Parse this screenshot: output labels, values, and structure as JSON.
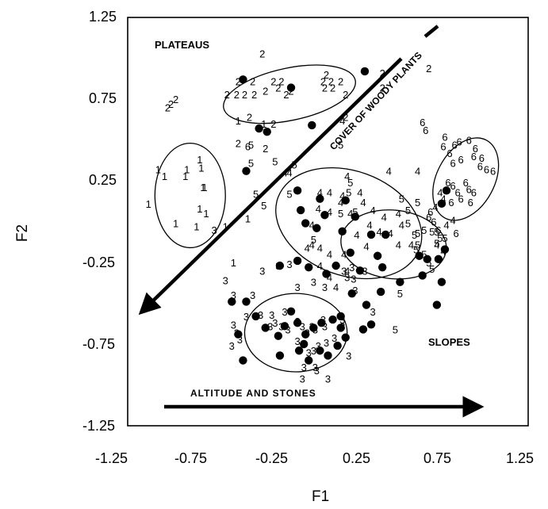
{
  "chart_data": {
    "type": "scatter",
    "title": "",
    "xlabel": "F1",
    "ylabel": "F2",
    "xlim": [
      -1.25,
      1.25
    ],
    "ylim": [
      -1.25,
      1.25
    ],
    "xticks": [
      "-1.25",
      "-0.75",
      "-0.25",
      "0.25",
      "0.75",
      "1.25"
    ],
    "yticks": [
      "1.25",
      "0.75",
      "0.25",
      "-0.25",
      "-0.75",
      "-1.25"
    ],
    "grid": false,
    "annotations": {
      "plateaus": "PLATEAUS",
      "slopes": "SLOPES",
      "woody_arrow": "COVER OF WOODY PLANTS",
      "altitude_arrow": "ALTITUDE AND STONES"
    },
    "series": [
      {
        "name": "1",
        "marker": "1",
        "points": [
          [
            -1.06,
            0.32
          ],
          [
            -1.02,
            0.28
          ],
          [
            -1.12,
            0.11
          ],
          [
            -0.88,
            0.32
          ],
          [
            -0.89,
            0.28
          ],
          [
            -0.78,
            0.21
          ],
          [
            -0.8,
            0.08
          ],
          [
            -0.76,
            0.05
          ],
          [
            -0.95,
            -0.01
          ],
          [
            -0.82,
            -0.03
          ],
          [
            -0.64,
            -0.03
          ],
          [
            -0.56,
            0.62
          ],
          [
            -0.4,
            0.6
          ],
          [
            -0.5,
            0.02
          ],
          [
            -0.59,
            -0.25
          ],
          [
            -0.77,
            0.21
          ],
          [
            -0.79,
            0.33
          ],
          [
            -0.8,
            0.38
          ]
        ]
      },
      {
        "name": "2",
        "marker": "2",
        "points": [
          [
            -0.41,
            1.03
          ],
          [
            -0.56,
            0.86
          ],
          [
            -0.47,
            0.86
          ],
          [
            -0.34,
            0.86
          ],
          [
            -0.29,
            0.86
          ],
          [
            -0.31,
            0.82
          ],
          [
            -0.39,
            0.8
          ],
          [
            -0.46,
            0.78
          ],
          [
            -0.52,
            0.78
          ],
          [
            -0.57,
            0.78
          ],
          [
            -0.63,
            0.78
          ],
          [
            -0.23,
            0.8
          ],
          [
            -0.26,
            0.78
          ],
          [
            -0.03,
            0.86
          ],
          [
            -0.02,
            0.82
          ],
          [
            0.03,
            0.82
          ],
          [
            0.02,
            0.86
          ],
          [
            0.08,
            0.86
          ],
          [
            -0.01,
            0.9
          ],
          [
            0.11,
            0.64
          ],
          [
            0.11,
            0.78
          ],
          [
            0.34,
            0.82
          ],
          [
            0.34,
            0.91
          ],
          [
            -0.49,
            0.64
          ],
          [
            -0.34,
            0.6
          ],
          [
            -0.39,
            0.45
          ],
          [
            -0.56,
            0.48
          ],
          [
            -1.0,
            0.7
          ],
          [
            -0.98,
            0.72
          ],
          [
            -0.95,
            0.75
          ],
          [
            0.63,
            0.94
          ]
        ]
      },
      {
        "name": "3",
        "marker": "3",
        "points": [
          [
            -0.71,
            -0.05
          ],
          [
            -0.64,
            -0.36
          ],
          [
            -0.59,
            -0.45
          ],
          [
            -0.47,
            -0.45
          ],
          [
            -0.41,
            -0.3
          ],
          [
            -0.31,
            -0.27
          ],
          [
            -0.24,
            -0.26
          ],
          [
            -0.51,
            -0.58
          ],
          [
            -0.59,
            -0.63
          ],
          [
            -0.57,
            -0.68
          ],
          [
            -0.55,
            -0.72
          ],
          [
            -0.6,
            -0.76
          ],
          [
            -0.42,
            -0.57
          ],
          [
            -0.35,
            -0.57
          ],
          [
            -0.33,
            -0.62
          ],
          [
            -0.29,
            -0.64
          ],
          [
            -0.25,
            -0.66
          ],
          [
            -0.19,
            -0.61
          ],
          [
            -0.16,
            -0.64
          ],
          [
            -0.13,
            -0.68
          ],
          [
            -0.1,
            -0.64
          ],
          [
            -0.08,
            -0.66
          ],
          [
            -0.02,
            -0.64
          ],
          [
            -0.19,
            -0.73
          ],
          [
            -0.12,
            -0.8
          ],
          [
            -0.09,
            -0.79
          ],
          [
            -0.06,
            -0.76
          ],
          [
            -0.01,
            -0.74
          ],
          [
            0.04,
            -0.71
          ],
          [
            0.09,
            -0.64
          ],
          [
            -0.15,
            -0.89
          ],
          [
            -0.08,
            -0.89
          ],
          [
            -0.07,
            -0.91
          ],
          [
            -0.16,
            -0.96
          ],
          [
            0.0,
            -0.96
          ],
          [
            0.13,
            -0.82
          ],
          [
            0.09,
            -0.6
          ],
          [
            0.28,
            -0.55
          ],
          [
            0.17,
            -0.42
          ],
          [
            0.16,
            -0.35
          ],
          [
            0.1,
            -0.3
          ],
          [
            -0.19,
            -0.4
          ],
          [
            -0.09,
            -0.37
          ],
          [
            -0.02,
            -0.4
          ],
          [
            0.15,
            -0.28
          ],
          [
            0.23,
            -0.3
          ],
          [
            0.12,
            -0.34
          ],
          [
            -0.27,
            -0.55
          ],
          [
            -0.36,
            -0.64
          ],
          [
            -0.03,
            -0.6
          ]
        ]
      },
      {
        "name": "4",
        "marker": "4",
        "points": [
          [
            0.09,
            0.62
          ],
          [
            -0.27,
            0.3
          ],
          [
            -0.24,
            0.3
          ],
          [
            0.12,
            0.28
          ],
          [
            0.38,
            0.31
          ],
          [
            0.56,
            0.31
          ],
          [
            -0.05,
            0.18
          ],
          [
            0.01,
            0.18
          ],
          [
            -0.06,
            0.08
          ],
          [
            0.01,
            0.06
          ],
          [
            0.09,
            0.16
          ],
          [
            -0.1,
            -0.02
          ],
          [
            0.08,
            0.12
          ],
          [
            0.22,
            0.12
          ],
          [
            0.28,
            0.07
          ],
          [
            0.35,
            0.03
          ],
          [
            0.26,
            -0.02
          ],
          [
            0.32,
            -0.06
          ],
          [
            0.39,
            -0.07
          ],
          [
            0.46,
            -0.02
          ],
          [
            0.18,
            -0.08
          ],
          [
            0.24,
            -0.15
          ],
          [
            -0.1,
            -0.14
          ],
          [
            -0.05,
            -0.16
          ],
          [
            -0.13,
            -0.16
          ],
          [
            0.1,
            -0.2
          ],
          [
            0.01,
            -0.2
          ],
          [
            0.12,
            -0.3
          ],
          [
            -0.05,
            -0.27
          ],
          [
            0.44,
            0.05
          ],
          [
            0.44,
            -0.14
          ],
          [
            0.52,
            -0.14
          ],
          [
            0.2,
            0.18
          ],
          [
            0.01,
            -0.34
          ],
          [
            0.05,
            -0.4
          ],
          [
            0.14,
            0.05
          ],
          [
            0.78,
            0.01
          ],
          [
            0.74,
            -0.02
          ],
          [
            0.68,
            -0.14
          ],
          [
            0.72,
            -0.18
          ],
          [
            0.67,
            0.09
          ],
          [
            0.72,
            0.14
          ],
          [
            0.7,
            0.18
          ]
        ]
      },
      {
        "name": "5",
        "marker": "5",
        "points": [
          [
            -0.48,
            0.47
          ],
          [
            -0.48,
            0.36
          ],
          [
            -0.33,
            0.37
          ],
          [
            -0.21,
            0.35
          ],
          [
            0.08,
            0.47
          ],
          [
            -0.4,
            0.1
          ],
          [
            -0.45,
            0.17
          ],
          [
            -0.24,
            0.17
          ],
          [
            0.14,
            0.24
          ],
          [
            0.13,
            0.18
          ],
          [
            0.08,
            0.05
          ],
          [
            0.17,
            0.06
          ],
          [
            -0.09,
            -0.11
          ],
          [
            0.46,
            0.14
          ],
          [
            0.56,
            0.12
          ],
          [
            0.5,
            0.07
          ],
          [
            0.5,
            -0.01
          ],
          [
            0.54,
            -0.08
          ],
          [
            0.55,
            -0.17
          ],
          [
            0.56,
            -0.14
          ],
          [
            0.45,
            -0.44
          ],
          [
            0.42,
            -0.66
          ],
          [
            0.6,
            -0.2
          ],
          [
            0.63,
            -0.25
          ],
          [
            0.65,
            -0.29
          ],
          [
            0.56,
            -0.07
          ],
          [
            0.6,
            -0.05
          ],
          [
            0.68,
            -0.13
          ],
          [
            0.7,
            -0.1
          ],
          [
            0.73,
            -0.1
          ],
          [
            0.65,
            -0.06
          ],
          [
            0.68,
            -0.06
          ]
        ]
      },
      {
        "name": "6",
        "marker": "6",
        "points": [
          [
            -0.5,
            0.46
          ],
          [
            0.59,
            0.61
          ],
          [
            0.61,
            0.56
          ],
          [
            0.73,
            0.52
          ],
          [
            0.72,
            0.46
          ],
          [
            0.79,
            0.47
          ],
          [
            0.82,
            0.49
          ],
          [
            0.88,
            0.5
          ],
          [
            0.92,
            0.45
          ],
          [
            0.76,
            0.42
          ],
          [
            0.78,
            0.36
          ],
          [
            0.83,
            0.38
          ],
          [
            0.91,
            0.4
          ],
          [
            0.96,
            0.39
          ],
          [
            0.95,
            0.34
          ],
          [
            0.99,
            0.32
          ],
          [
            1.03,
            0.31
          ],
          [
            0.86,
            0.24
          ],
          [
            0.88,
            0.2
          ],
          [
            0.91,
            0.18
          ],
          [
            0.89,
            0.12
          ],
          [
            0.75,
            0.24
          ],
          [
            0.78,
            0.22
          ],
          [
            0.81,
            0.18
          ],
          [
            0.83,
            0.14
          ],
          [
            0.77,
            0.12
          ],
          [
            0.64,
            0.06
          ],
          [
            0.63,
            0.03
          ],
          [
            0.66,
            -0.0
          ],
          [
            0.69,
            -0.05
          ],
          [
            0.8,
            -0.07
          ]
        ]
      },
      {
        "name": "filled",
        "marker": "dot",
        "points": [
          [
            -0.53,
            0.87
          ],
          [
            -0.23,
            0.82
          ],
          [
            0.23,
            0.92
          ],
          [
            -0.43,
            0.57
          ],
          [
            -0.38,
            0.55
          ],
          [
            -0.1,
            0.59
          ],
          [
            -0.51,
            0.31
          ],
          [
            -0.19,
            0.19
          ],
          [
            -0.05,
            0.14
          ],
          [
            0.11,
            0.13
          ],
          [
            -0.17,
            0.07
          ],
          [
            -0.02,
            0.04
          ],
          [
            0.17,
            0.03
          ],
          [
            -0.14,
            -0.01
          ],
          [
            -0.07,
            -0.04
          ],
          [
            0.09,
            -0.06
          ],
          [
            0.27,
            -0.08
          ],
          [
            0.36,
            -0.08
          ],
          [
            0.14,
            -0.19
          ],
          [
            0.31,
            -0.21
          ],
          [
            -0.19,
            -0.24
          ],
          [
            -0.3,
            -0.27
          ],
          [
            0.05,
            -0.27
          ],
          [
            0.2,
            -0.3
          ],
          [
            0.34,
            -0.28
          ],
          [
            0.57,
            -0.21
          ],
          [
            0.62,
            -0.23
          ],
          [
            0.69,
            -0.23
          ],
          [
            0.73,
            -0.17
          ],
          [
            0.71,
            -0.37
          ],
          [
            0.68,
            -0.51
          ],
          [
            -0.6,
            -0.49
          ],
          [
            -0.51,
            -0.49
          ],
          [
            -0.45,
            -0.58
          ],
          [
            -0.39,
            -0.65
          ],
          [
            -0.31,
            -0.7
          ],
          [
            -0.27,
            -0.64
          ],
          [
            -0.23,
            -0.55
          ],
          [
            -0.19,
            -0.62
          ],
          [
            -0.14,
            -0.69
          ],
          [
            -0.09,
            -0.65
          ],
          [
            -0.04,
            -0.62
          ],
          [
            0.03,
            -0.6
          ],
          [
            0.08,
            -0.65
          ],
          [
            -0.18,
            -0.79
          ],
          [
            -0.12,
            -0.85
          ],
          [
            -0.05,
            -0.79
          ],
          [
            0.0,
            -0.82
          ],
          [
            0.06,
            -0.76
          ],
          [
            0.22,
            -0.66
          ],
          [
            0.27,
            -0.63
          ],
          [
            -0.56,
            -0.69
          ],
          [
            -0.53,
            -0.85
          ],
          [
            -0.3,
            -0.82
          ],
          [
            -0.15,
            -0.75
          ],
          [
            0.11,
            -0.71
          ],
          [
            0.08,
            -0.58
          ],
          [
            0.33,
            -0.43
          ],
          [
            0.45,
            -0.37
          ],
          [
            -0.01,
            -0.32
          ],
          [
            -0.12,
            -0.28
          ],
          [
            0.15,
            -0.44
          ],
          [
            0.24,
            -0.51
          ],
          [
            0.59,
            -0.33
          ],
          [
            0.71,
            0.11
          ],
          [
            0.74,
            0.19
          ]
        ]
      }
    ],
    "ellipses": [
      {
        "cx": -0.24,
        "cy": 0.78,
        "rx": 0.42,
        "ry": 0.16,
        "rotate": -12
      },
      {
        "cx": -0.86,
        "cy": 0.16,
        "rx": 0.22,
        "ry": 0.32,
        "rotate": 0
      },
      {
        "cx": 0.13,
        "cy": -0.01,
        "rx": 0.47,
        "ry": 0.32,
        "rotate": 20
      },
      {
        "cx": 0.41,
        "cy": -0.14,
        "rx": 0.33,
        "ry": 0.21,
        "rotate": 6
      },
      {
        "cx": -0.2,
        "cy": -0.68,
        "rx": 0.32,
        "ry": 0.24,
        "rotate": 0
      },
      {
        "cx": 0.86,
        "cy": 0.26,
        "rx": 0.18,
        "ry": 0.27,
        "rotate": 28
      }
    ]
  }
}
